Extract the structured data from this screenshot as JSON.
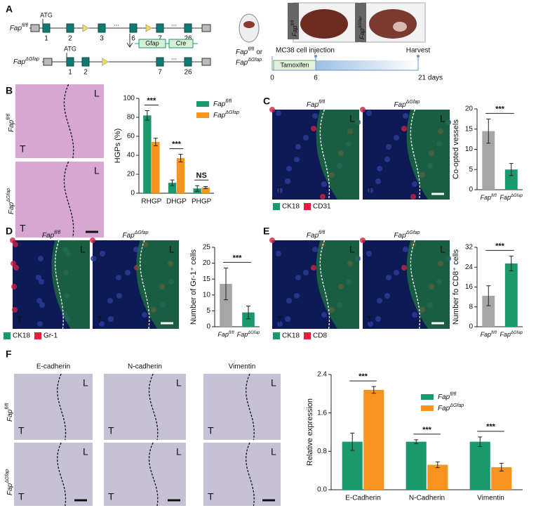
{
  "panels": [
    "A",
    "B",
    "C",
    "D",
    "E",
    "F"
  ],
  "genotypes": {
    "wt": {
      "base": "Fap",
      "sup": "fl/fl"
    },
    "ko": {
      "base": "Fap",
      "sup": "ΔGfap"
    }
  },
  "panel_a": {
    "atg": "ATG",
    "exons": [
      "1",
      "2",
      "3",
      "6",
      "7",
      "26"
    ],
    "ellipsis": "...",
    "gfap": "Gfap",
    "cre": "Cre",
    "or": "or",
    "injection": "MC38 cell injection",
    "harvest": "Harvest",
    "tamoxifen": "Tamoxifen",
    "timeline_ticks": [
      "0",
      "6",
      "21 days"
    ]
  },
  "regions": {
    "liver": "L",
    "tumor": "T"
  },
  "stains": {
    "C": [
      "CK18",
      "CD31"
    ],
    "D": [
      "CK18",
      "Gr-1"
    ],
    "E": [
      "CK18",
      "CD8"
    ]
  },
  "panel_f_columns": [
    "E-cadherin",
    "N-cadherin",
    "Vimentin"
  ],
  "chart_data": [
    {
      "type": "bar",
      "ylabel": "HGPs (%)",
      "categories": [
        "RHGP",
        "DHGP",
        "PHGP"
      ],
      "series": [
        {
          "name": {
            "base": "Fap",
            "sup": "fl/fl"
          },
          "color": "#1a9a6c",
          "values": [
            82,
            11,
            5
          ],
          "errors": [
            5,
            3,
            3
          ]
        },
        {
          "name": {
            "base": "Fap",
            "sup": "ΔGfap"
          },
          "color": "#f7931e",
          "values": [
            54,
            37,
            6
          ],
          "errors": [
            4,
            4,
            1
          ]
        }
      ],
      "significance": [
        "***",
        "***",
        "NS"
      ],
      "ylim": [
        0,
        100
      ],
      "yticks": [
        0,
        20,
        40,
        60,
        80,
        100
      ]
    },
    {
      "type": "bar",
      "ylabel": "Co-opted vessels",
      "categories": [
        {
          "base": "Fap",
          "sup": "fl/fl"
        },
        {
          "base": "Fap",
          "sup": "ΔGfap"
        }
      ],
      "series": [
        {
          "colors": [
            "#a6a6a6",
            "#1a9a6c"
          ],
          "values": [
            14.5,
            5
          ],
          "errors": [
            3,
            1.5
          ]
        }
      ],
      "significance": [
        "***"
      ],
      "ylim": [
        0,
        20
      ],
      "yticks": [
        0,
        5,
        10,
        15,
        20
      ]
    },
    {
      "type": "bar",
      "ylabel": "Number of Gr-1⁺ cells",
      "categories": [
        {
          "base": "Fap",
          "sup": "fl/fl"
        },
        {
          "base": "Fap",
          "sup": "ΔGfap"
        }
      ],
      "series": [
        {
          "colors": [
            "#a6a6a6",
            "#1a9a6c"
          ],
          "values": [
            13.5,
            4.5
          ],
          "errors": [
            5,
            2
          ]
        }
      ],
      "significance": [
        "***"
      ],
      "ylim": [
        0,
        25
      ],
      "yticks": [
        0,
        5,
        10,
        15,
        20,
        25
      ]
    },
    {
      "type": "bar",
      "ylabel": "Number fo CD8⁺ cells",
      "categories": [
        {
          "base": "Fap",
          "sup": "fl/fl"
        },
        {
          "base": "Fap",
          "sup": "ΔGfap"
        }
      ],
      "series": [
        {
          "colors": [
            "#a6a6a6",
            "#1a9a6c"
          ],
          "values": [
            12.5,
            25.5
          ],
          "errors": [
            4,
            3
          ]
        }
      ],
      "significance": [
        "***"
      ],
      "ylim": [
        0,
        32
      ],
      "yticks": [
        0,
        8,
        16,
        24,
        32
      ]
    },
    {
      "type": "bar",
      "ylabel": "Relative expression",
      "categories": [
        "E-Cadherin",
        "N-Cadherin",
        "Vimentin"
      ],
      "series": [
        {
          "name": {
            "base": "Fap",
            "sup": "fl/fl"
          },
          "color": "#1a9a6c",
          "values": [
            1.0,
            1.0,
            1.0
          ],
          "errors": [
            0.18,
            0.04,
            0.1
          ]
        },
        {
          "name": {
            "base": "Fap",
            "sup": "ΔGfap"
          },
          "color": "#f7931e",
          "values": [
            2.08,
            0.52,
            0.47
          ],
          "errors": [
            0.07,
            0.06,
            0.08
          ]
        }
      ],
      "significance": [
        "***",
        "***",
        "***"
      ],
      "ylim": [
        0,
        2.4
      ],
      "yticks": [
        {
          "value": 0,
          "label": "0.0"
        },
        0.8,
        1.6,
        2.4
      ]
    }
  ]
}
